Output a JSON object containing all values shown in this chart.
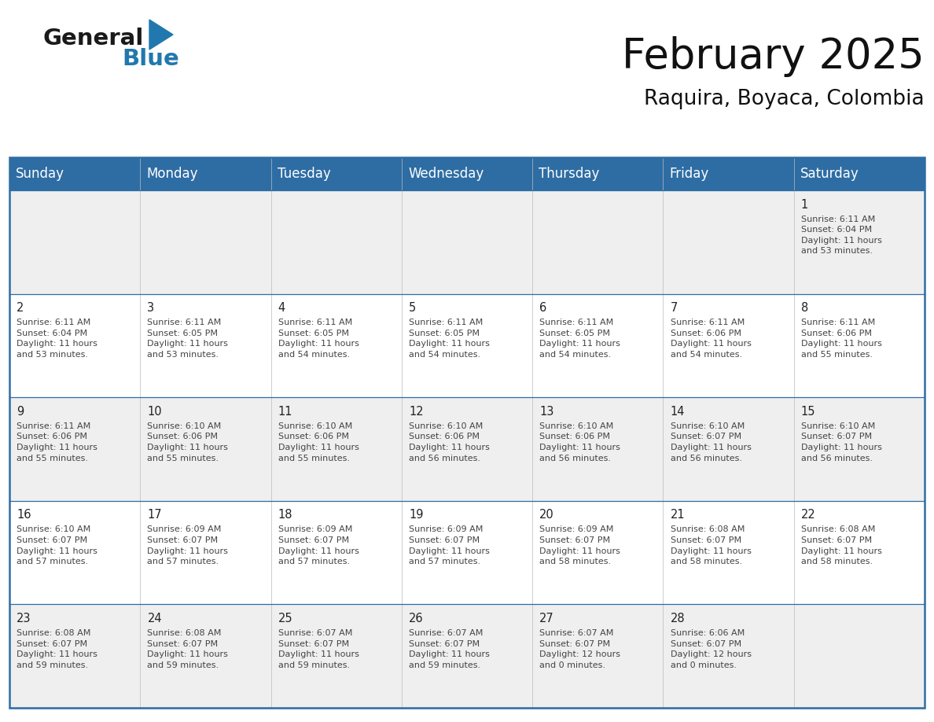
{
  "title": "February 2025",
  "subtitle": "Raquira, Boyaca, Colombia",
  "header_bg": "#2E6DA4",
  "header_text": "#FFFFFF",
  "cell_bg_odd": "#EFEFEF",
  "cell_bg_even": "#FFFFFF",
  "border_color": "#2E6DA4",
  "day_headers": [
    "Sunday",
    "Monday",
    "Tuesday",
    "Wednesday",
    "Thursday",
    "Friday",
    "Saturday"
  ],
  "weeks": [
    [
      {
        "day": "",
        "info": ""
      },
      {
        "day": "",
        "info": ""
      },
      {
        "day": "",
        "info": ""
      },
      {
        "day": "",
        "info": ""
      },
      {
        "day": "",
        "info": ""
      },
      {
        "day": "",
        "info": ""
      },
      {
        "day": "1",
        "info": "Sunrise: 6:11 AM\nSunset: 6:04 PM\nDaylight: 11 hours\nand 53 minutes."
      }
    ],
    [
      {
        "day": "2",
        "info": "Sunrise: 6:11 AM\nSunset: 6:04 PM\nDaylight: 11 hours\nand 53 minutes."
      },
      {
        "day": "3",
        "info": "Sunrise: 6:11 AM\nSunset: 6:05 PM\nDaylight: 11 hours\nand 53 minutes."
      },
      {
        "day": "4",
        "info": "Sunrise: 6:11 AM\nSunset: 6:05 PM\nDaylight: 11 hours\nand 54 minutes."
      },
      {
        "day": "5",
        "info": "Sunrise: 6:11 AM\nSunset: 6:05 PM\nDaylight: 11 hours\nand 54 minutes."
      },
      {
        "day": "6",
        "info": "Sunrise: 6:11 AM\nSunset: 6:05 PM\nDaylight: 11 hours\nand 54 minutes."
      },
      {
        "day": "7",
        "info": "Sunrise: 6:11 AM\nSunset: 6:06 PM\nDaylight: 11 hours\nand 54 minutes."
      },
      {
        "day": "8",
        "info": "Sunrise: 6:11 AM\nSunset: 6:06 PM\nDaylight: 11 hours\nand 55 minutes."
      }
    ],
    [
      {
        "day": "9",
        "info": "Sunrise: 6:11 AM\nSunset: 6:06 PM\nDaylight: 11 hours\nand 55 minutes."
      },
      {
        "day": "10",
        "info": "Sunrise: 6:10 AM\nSunset: 6:06 PM\nDaylight: 11 hours\nand 55 minutes."
      },
      {
        "day": "11",
        "info": "Sunrise: 6:10 AM\nSunset: 6:06 PM\nDaylight: 11 hours\nand 55 minutes."
      },
      {
        "day": "12",
        "info": "Sunrise: 6:10 AM\nSunset: 6:06 PM\nDaylight: 11 hours\nand 56 minutes."
      },
      {
        "day": "13",
        "info": "Sunrise: 6:10 AM\nSunset: 6:06 PM\nDaylight: 11 hours\nand 56 minutes."
      },
      {
        "day": "14",
        "info": "Sunrise: 6:10 AM\nSunset: 6:07 PM\nDaylight: 11 hours\nand 56 minutes."
      },
      {
        "day": "15",
        "info": "Sunrise: 6:10 AM\nSunset: 6:07 PM\nDaylight: 11 hours\nand 56 minutes."
      }
    ],
    [
      {
        "day": "16",
        "info": "Sunrise: 6:10 AM\nSunset: 6:07 PM\nDaylight: 11 hours\nand 57 minutes."
      },
      {
        "day": "17",
        "info": "Sunrise: 6:09 AM\nSunset: 6:07 PM\nDaylight: 11 hours\nand 57 minutes."
      },
      {
        "day": "18",
        "info": "Sunrise: 6:09 AM\nSunset: 6:07 PM\nDaylight: 11 hours\nand 57 minutes."
      },
      {
        "day": "19",
        "info": "Sunrise: 6:09 AM\nSunset: 6:07 PM\nDaylight: 11 hours\nand 57 minutes."
      },
      {
        "day": "20",
        "info": "Sunrise: 6:09 AM\nSunset: 6:07 PM\nDaylight: 11 hours\nand 58 minutes."
      },
      {
        "day": "21",
        "info": "Sunrise: 6:08 AM\nSunset: 6:07 PM\nDaylight: 11 hours\nand 58 minutes."
      },
      {
        "day": "22",
        "info": "Sunrise: 6:08 AM\nSunset: 6:07 PM\nDaylight: 11 hours\nand 58 minutes."
      }
    ],
    [
      {
        "day": "23",
        "info": "Sunrise: 6:08 AM\nSunset: 6:07 PM\nDaylight: 11 hours\nand 59 minutes."
      },
      {
        "day": "24",
        "info": "Sunrise: 6:08 AM\nSunset: 6:07 PM\nDaylight: 11 hours\nand 59 minutes."
      },
      {
        "day": "25",
        "info": "Sunrise: 6:07 AM\nSunset: 6:07 PM\nDaylight: 11 hours\nand 59 minutes."
      },
      {
        "day": "26",
        "info": "Sunrise: 6:07 AM\nSunset: 6:07 PM\nDaylight: 11 hours\nand 59 minutes."
      },
      {
        "day": "27",
        "info": "Sunrise: 6:07 AM\nSunset: 6:07 PM\nDaylight: 12 hours\nand 0 minutes."
      },
      {
        "day": "28",
        "info": "Sunrise: 6:06 AM\nSunset: 6:07 PM\nDaylight: 12 hours\nand 0 minutes."
      },
      {
        "day": "",
        "info": ""
      }
    ]
  ],
  "title_fontsize": 38,
  "subtitle_fontsize": 19,
  "header_fontsize": 12,
  "day_num_fontsize": 10.5,
  "info_fontsize": 8.0,
  "logo_color1": "#1a1a1a",
  "logo_color2": "#2178AE"
}
